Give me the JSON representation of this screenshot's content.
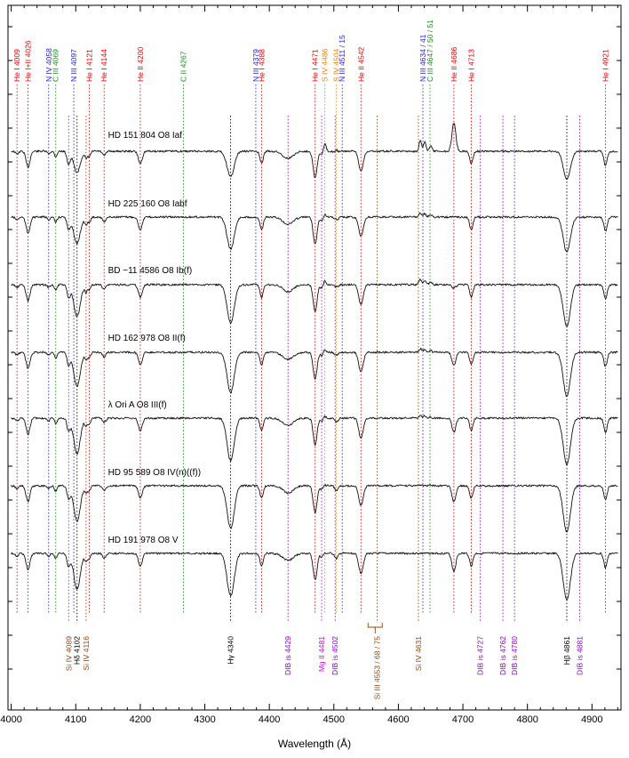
{
  "chart_data": {
    "type": "line",
    "xlabel": "Wavelength (Å)",
    "xlim": [
      3995,
      4945
    ],
    "x_ticks": [
      4000,
      4100,
      4200,
      4300,
      4400,
      4500,
      4600,
      4700,
      4800,
      4900
    ],
    "series": [
      {
        "name": "HD 151 804   O8 Iaf"
      },
      {
        "name": "HD 225 160   O8 Iabf"
      },
      {
        "name": "BD −11 4586   O8 Ib(f)"
      },
      {
        "name": "HD 162 978   O8 II(f)"
      },
      {
        "name": "λ Ori A   O8 III(f)"
      },
      {
        "name": "HD 95 589   O8 IV(n)((f))"
      },
      {
        "name": "HD 191 978   O8 V"
      }
    ],
    "top_lines": [
      {
        "label": "He I 4009",
        "wl": 4009,
        "color": "#e00000"
      },
      {
        "label": "He I+II 4026",
        "wl": 4026,
        "color": "#e00000"
      },
      {
        "label": "N IV 4058",
        "wl": 4058,
        "color": "#2020e0"
      },
      {
        "label": "C III 4069",
        "wl": 4069,
        "color": "#10901a"
      },
      {
        "label": "N III 4097",
        "wl": 4097,
        "color": "#2020e0"
      },
      {
        "label": "He I 4121",
        "wl": 4121,
        "color": "#e00000"
      },
      {
        "label": "He I 4144",
        "wl": 4144,
        "color": "#e00000"
      },
      {
        "label": "He II 4200",
        "wl": 4200,
        "color": "#e00000"
      },
      {
        "label": "C II 4267",
        "wl": 4267,
        "color": "#10901a"
      },
      {
        "label": "N III 4379",
        "wl": 4379,
        "color": "#2020e0"
      },
      {
        "label": "He I 4388",
        "wl": 4388,
        "color": "#e00000"
      },
      {
        "label": "He I 4471",
        "wl": 4471,
        "color": "#e00000"
      },
      {
        "label": "S IV 4486",
        "wl": 4486,
        "color": "#f08000"
      },
      {
        "label": "S IV 4504",
        "wl": 4504,
        "color": "#f08000"
      },
      {
        "label": "N III 4511 / 15",
        "wl": 4513,
        "color": "#2020e0"
      },
      {
        "label": "He II 4542",
        "wl": 4542,
        "color": "#e00000"
      },
      {
        "label": "N III 4634 / 41",
        "wl": 4638,
        "color": "#2020e0"
      },
      {
        "label": "C III 4647 / 50 / 51",
        "wl": 4649,
        "color": "#10901a"
      },
      {
        "label": "He II 4686",
        "wl": 4686,
        "color": "#e00000"
      },
      {
        "label": "He I 4713",
        "wl": 4713,
        "color": "#e00000"
      },
      {
        "label": "He I 4921",
        "wl": 4921,
        "color": "#e00000"
      }
    ],
    "bottom_lines": [
      {
        "label": "Si IV 4089",
        "wl": 4089,
        "color": "#8b4513"
      },
      {
        "label": "Hδ 4102",
        "wl": 4102,
        "color": "#000000"
      },
      {
        "label": "Si IV 4116",
        "wl": 4116,
        "color": "#8b4513"
      },
      {
        "label": "Hγ 4340",
        "wl": 4340,
        "color": "#000000"
      },
      {
        "label": "DIB is 4429",
        "wl": 4429,
        "color": "#9400d3"
      },
      {
        "label": "Mg II 4481",
        "wl": 4481,
        "color": "#d000d0"
      },
      {
        "label": "DIB is 4502",
        "wl": 4502,
        "color": "#9400d3"
      },
      {
        "label": "Si III 4553 / 68 / 75",
        "wl": 4567,
        "color": "#8b4513"
      },
      {
        "label": "Si IV 4631",
        "wl": 4631,
        "color": "#8b4513"
      },
      {
        "label": "DIB is 4727",
        "wl": 4727,
        "color": "#9400d3"
      },
      {
        "label": "DIB is 4762",
        "wl": 4762,
        "color": "#9400d3"
      },
      {
        "label": "DIB is 4780",
        "wl": 4780,
        "color": "#9400d3"
      },
      {
        "label": "Hβ 4861",
        "wl": 4861,
        "color": "#000000"
      },
      {
        "label": "DIB is 4881",
        "wl": 4881,
        "color": "#9400d3"
      }
    ]
  }
}
